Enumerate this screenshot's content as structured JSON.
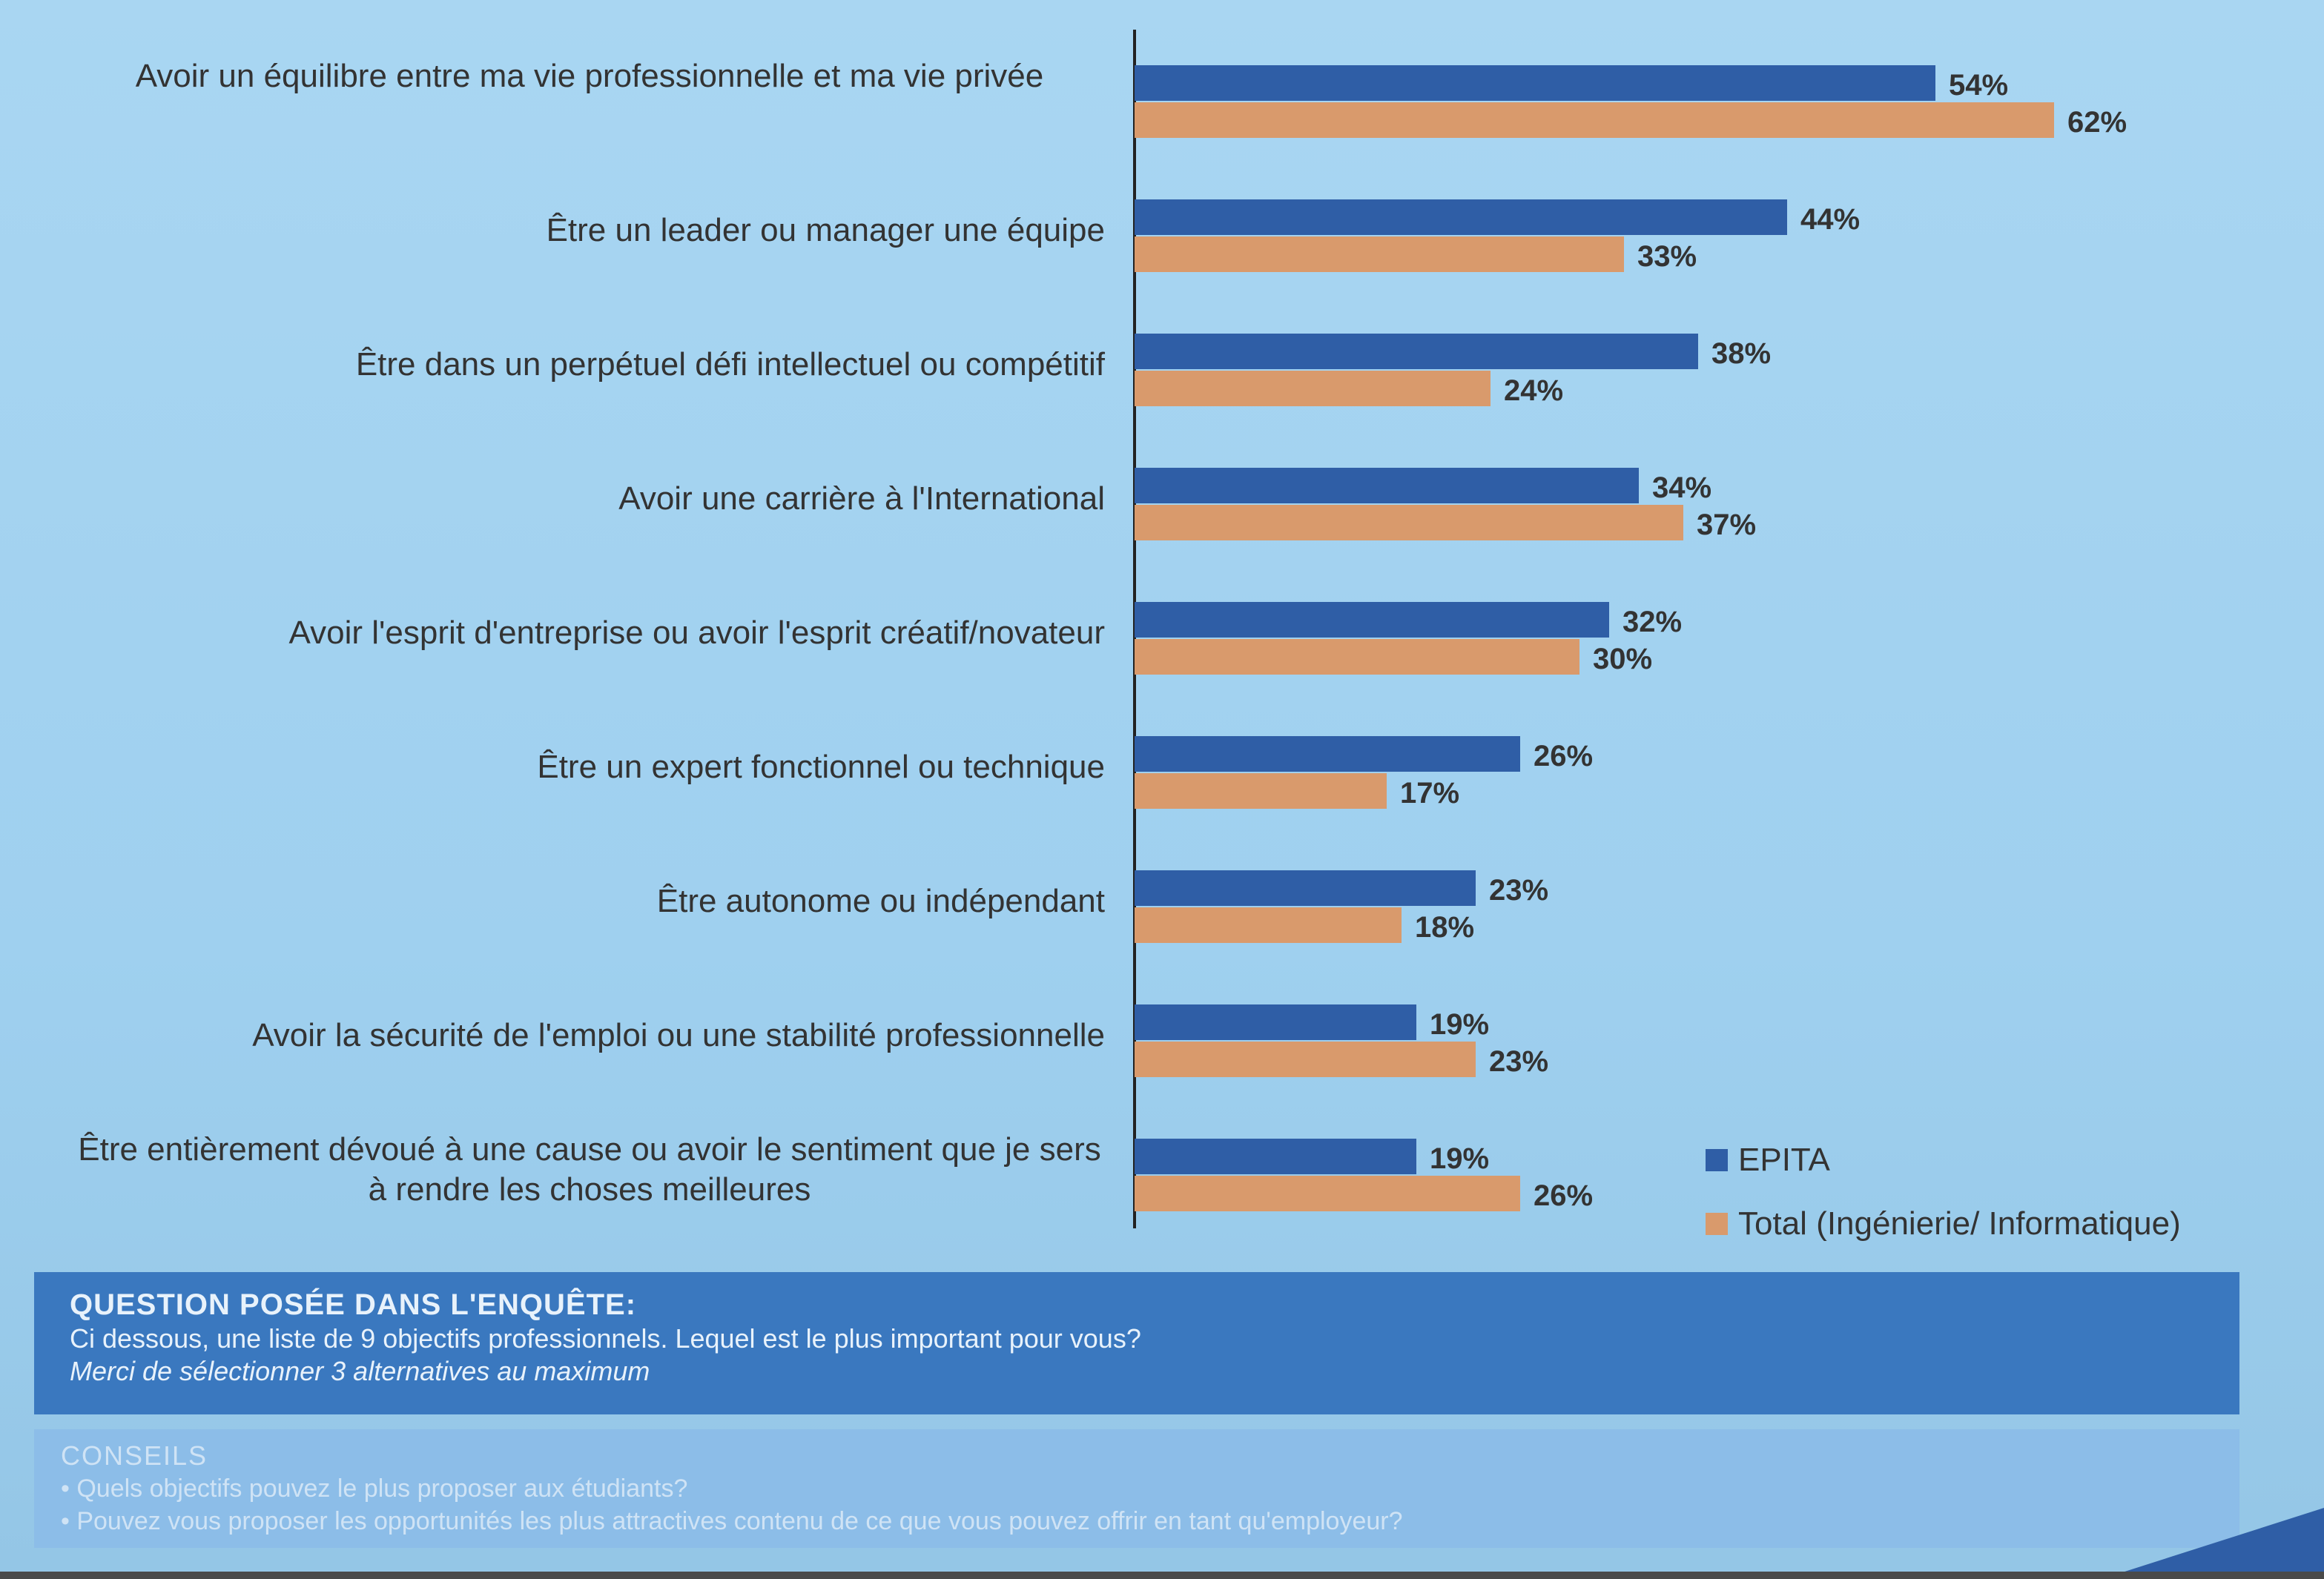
{
  "chart_data": {
    "type": "bar",
    "orientation": "horizontal",
    "categories": [
      "Avoir un équilibre entre ma vie professionnelle et ma vie privée",
      "Être un leader ou manager une équipe",
      "Être dans un perpétuel défi intellectuel ou compétitif",
      "Avoir une carrière à l'International",
      "Avoir l'esprit d'entreprise ou avoir l'esprit créatif/novateur",
      "Être un expert fonctionnel ou technique",
      "Être autonome ou indépendant",
      "Avoir la sécurité de l'emploi ou une stabilité professionnelle",
      "Être entièrement dévoué à une cause ou avoir le sentiment que je sers à rendre les choses meilleures"
    ],
    "series": [
      {
        "name": "EPITA",
        "color": "#2f5ea6",
        "values": [
          54,
          44,
          38,
          34,
          32,
          26,
          23,
          19,
          19
        ]
      },
      {
        "name": "Total (Ingénierie/ Informatique)",
        "color": "#d99a6c",
        "values": [
          62,
          33,
          24,
          37,
          30,
          17,
          18,
          23,
          26
        ]
      }
    ],
    "value_suffix": "%",
    "xlim": [
      0,
      70
    ],
    "grid": false,
    "legend_position": "bottom-right"
  },
  "question": {
    "title": "QUESTION POSÉE DANS L'ENQUÊTE:",
    "text": "Ci dessous, une liste de 9 objectifs professionnels. Lequel est le plus important pour vous?",
    "note": "Merci de sélectionner 3 alternatives au maximum"
  },
  "tips": {
    "title": "CONSEILS",
    "items": [
      "• Quels objectifs pouvez le plus proposer aux étudiants?",
      "• Pouvez vous proposer les opportunités les plus attractives contenu de ce que vous pouvez offrir en tant qu'employeur?"
    ]
  },
  "colors": {
    "background": "#a9d6f2",
    "question_box": "#3a78bf",
    "tips_box": "#8cbde8"
  }
}
